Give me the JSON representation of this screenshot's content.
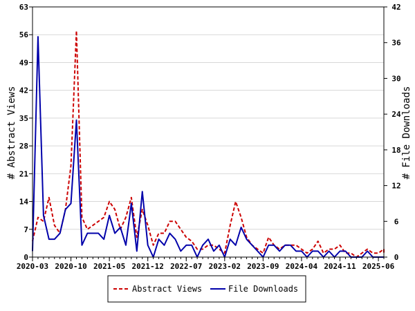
{
  "chart_data": {
    "type": "line",
    "left_axis": {
      "label": "# Abstract Views",
      "ylim": [
        0,
        63
      ],
      "ticks": [
        0,
        7,
        14,
        21,
        28,
        35,
        42,
        49,
        56,
        63
      ]
    },
    "right_axis": {
      "label": "# File Downloads",
      "ylim": [
        0,
        42
      ],
      "ticks": [
        0,
        6,
        12,
        18,
        24,
        30,
        36,
        42
      ]
    },
    "x_axis": {
      "range": [
        "2020-03",
        "2025-07"
      ],
      "tick_labels": [
        "2020-03",
        "2020-10",
        "2021-05",
        "2021-12",
        "2022-07",
        "2023-02",
        "2023-09",
        "2024-04",
        "2024-11",
        "2025-06"
      ]
    },
    "legend_position": "bottom",
    "series": [
      {
        "name": "Abstract Views",
        "axis": "left",
        "color": "#cc0000",
        "style": "dashed",
        "points": [
          [
            "2020-03",
            4
          ],
          [
            "2020-04",
            10
          ],
          [
            "2020-05",
            9
          ],
          [
            "2020-06",
            15
          ],
          [
            "2020-07",
            8
          ],
          [
            "2020-08",
            6
          ],
          [
            "2020-09",
            12
          ],
          [
            "2020-10",
            23
          ],
          [
            "2020-11",
            57
          ],
          [
            "2020-12",
            10
          ],
          [
            "2021-01",
            7
          ],
          [
            "2021-02",
            8
          ],
          [
            "2021-03",
            9
          ],
          [
            "2021-04",
            10
          ],
          [
            "2021-05",
            14
          ],
          [
            "2021-06",
            12
          ],
          [
            "2021-07",
            7
          ],
          [
            "2021-08",
            10
          ],
          [
            "2021-09",
            15
          ],
          [
            "2021-10",
            5
          ],
          [
            "2021-11",
            12
          ],
          [
            "2021-12",
            8
          ],
          [
            "2022-01",
            3
          ],
          [
            "2022-02",
            6
          ],
          [
            "2022-03",
            6
          ],
          [
            "2022-04",
            9
          ],
          [
            "2022-05",
            9
          ],
          [
            "2022-06",
            7
          ],
          [
            "2022-07",
            5
          ],
          [
            "2022-08",
            4
          ],
          [
            "2022-09",
            2
          ],
          [
            "2022-10",
            2
          ],
          [
            "2022-11",
            3
          ],
          [
            "2022-12",
            3
          ],
          [
            "2023-01",
            2
          ],
          [
            "2023-02",
            1
          ],
          [
            "2023-03",
            8
          ],
          [
            "2023-04",
            14
          ],
          [
            "2023-05",
            10
          ],
          [
            "2023-06",
            5
          ],
          [
            "2023-07",
            3
          ],
          [
            "2023-08",
            2
          ],
          [
            "2023-09",
            1
          ],
          [
            "2023-10",
            5
          ],
          [
            "2023-11",
            3
          ],
          [
            "2023-12",
            2
          ],
          [
            "2024-01",
            3
          ],
          [
            "2024-02",
            3
          ],
          [
            "2024-03",
            3
          ],
          [
            "2024-04",
            2
          ],
          [
            "2024-05",
            1
          ],
          [
            "2024-06",
            2
          ],
          [
            "2024-07",
            4
          ],
          [
            "2024-08",
            1
          ],
          [
            "2024-09",
            2
          ],
          [
            "2024-10",
            2
          ],
          [
            "2024-11",
            3
          ],
          [
            "2024-12",
            1
          ],
          [
            "2025-01",
            1
          ],
          [
            "2025-02",
            0
          ],
          [
            "2025-03",
            1
          ],
          [
            "2025-04",
            2
          ],
          [
            "2025-05",
            1
          ],
          [
            "2025-06",
            1
          ],
          [
            "2025-07",
            2
          ],
          [
            "2025-08",
            1
          ]
        ]
      },
      {
        "name": "File Downloads",
        "axis": "right",
        "color": "#0000aa",
        "style": "solid",
        "points": [
          [
            "2020-03",
            1
          ],
          [
            "2020-04",
            37
          ],
          [
            "2020-05",
            7
          ],
          [
            "2020-06",
            3
          ],
          [
            "2020-07",
            3
          ],
          [
            "2020-08",
            4
          ],
          [
            "2020-09",
            8
          ],
          [
            "2020-10",
            9
          ],
          [
            "2020-11",
            23
          ],
          [
            "2020-12",
            2
          ],
          [
            "2021-01",
            4
          ],
          [
            "2021-02",
            4
          ],
          [
            "2021-03",
            4
          ],
          [
            "2021-04",
            3
          ],
          [
            "2021-05",
            7
          ],
          [
            "2021-06",
            4
          ],
          [
            "2021-07",
            5
          ],
          [
            "2021-08",
            2
          ],
          [
            "2021-09",
            9
          ],
          [
            "2021-10",
            1
          ],
          [
            "2021-11",
            11
          ],
          [
            "2021-12",
            2
          ],
          [
            "2022-01",
            0
          ],
          [
            "2022-02",
            3
          ],
          [
            "2022-03",
            2
          ],
          [
            "2022-04",
            4
          ],
          [
            "2022-05",
            3
          ],
          [
            "2022-06",
            1
          ],
          [
            "2022-07",
            2
          ],
          [
            "2022-08",
            2
          ],
          [
            "2022-09",
            0
          ],
          [
            "2022-10",
            2
          ],
          [
            "2022-11",
            3
          ],
          [
            "2022-12",
            1
          ],
          [
            "2023-01",
            2
          ],
          [
            "2023-02",
            0
          ],
          [
            "2023-03",
            3
          ],
          [
            "2023-04",
            2
          ],
          [
            "2023-05",
            5
          ],
          [
            "2023-06",
            3
          ],
          [
            "2023-07",
            2
          ],
          [
            "2023-08",
            1
          ],
          [
            "2023-09",
            0
          ],
          [
            "2023-10",
            2
          ],
          [
            "2023-11",
            2
          ],
          [
            "2023-12",
            1
          ],
          [
            "2024-01",
            2
          ],
          [
            "2024-02",
            2
          ],
          [
            "2024-03",
            1
          ],
          [
            "2024-04",
            1
          ],
          [
            "2024-05",
            0
          ],
          [
            "2024-06",
            1
          ],
          [
            "2024-07",
            1
          ],
          [
            "2024-08",
            0
          ],
          [
            "2024-09",
            1
          ],
          [
            "2024-10",
            0
          ],
          [
            "2024-11",
            1
          ],
          [
            "2024-12",
            1
          ],
          [
            "2025-01",
            0
          ],
          [
            "2025-02",
            0
          ],
          [
            "2025-03",
            0
          ],
          [
            "2025-04",
            1
          ],
          [
            "2025-05",
            0
          ],
          [
            "2025-06",
            0
          ],
          [
            "2025-07",
            0
          ],
          [
            "2025-08",
            0
          ]
        ]
      }
    ]
  }
}
